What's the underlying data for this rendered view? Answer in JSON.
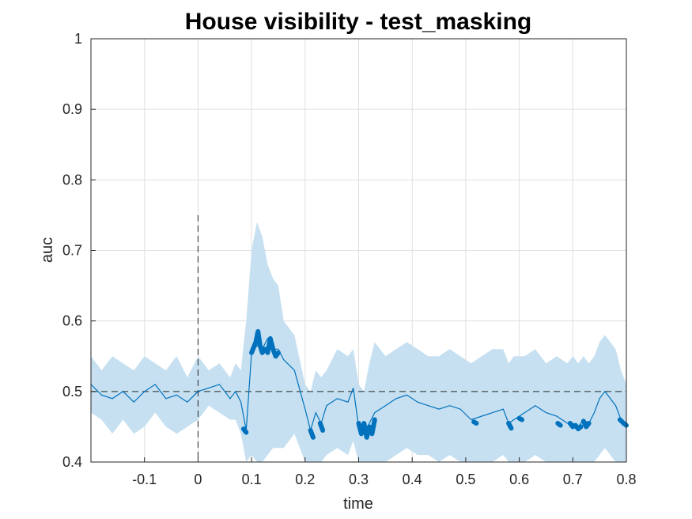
{
  "chart_data": {
    "type": "line",
    "title": "House visibility - test_masking",
    "xlabel": "time",
    "ylabel": "auc",
    "xlim": [
      -0.2,
      0.8
    ],
    "ylim": [
      0.4,
      1.0
    ],
    "xticks": [
      -0.1,
      0,
      0.1,
      0.2,
      0.3,
      0.4,
      0.5,
      0.6,
      0.7,
      0.8
    ],
    "xtick_labels": [
      "-0.1",
      "0",
      "0.1",
      "0.2",
      "0.3",
      "0.4",
      "0.5",
      "0.6",
      "0.7",
      "0.8"
    ],
    "yticks": [
      0.4,
      0.5,
      0.6,
      0.7,
      0.8,
      0.9,
      1.0
    ],
    "ytick_labels": [
      "0.4",
      "0.5",
      "0.6",
      "0.7",
      "0.8",
      "0.9",
      "1"
    ],
    "grid": true,
    "chance_level": 0.5,
    "onset_line": {
      "x": 0,
      "y_range": [
        0.4,
        0.75
      ]
    },
    "colors": {
      "line": "#0072bd",
      "band": "#c6e0f1",
      "reference": "#262626"
    },
    "series": [
      {
        "values_x": [
          -0.2,
          -0.18,
          -0.16,
          -0.14,
          -0.12,
          -0.1,
          -0.08,
          -0.06,
          -0.04,
          -0.02,
          0,
          0.02,
          0.04,
          0.06,
          0.07,
          0.08,
          0.09,
          0.1,
          0.11,
          0.12,
          0.13,
          0.14,
          0.15,
          0.16,
          0.18,
          0.2,
          0.21,
          0.22,
          0.23,
          0.24,
          0.26,
          0.28,
          0.29,
          0.3,
          0.31,
          0.32,
          0.33,
          0.35,
          0.37,
          0.39,
          0.41,
          0.43,
          0.45,
          0.47,
          0.49,
          0.51,
          0.53,
          0.55,
          0.57,
          0.58,
          0.59,
          0.61,
          0.63,
          0.65,
          0.67,
          0.69,
          0.7,
          0.71,
          0.72,
          0.73,
          0.74,
          0.75,
          0.76,
          0.78,
          0.79,
          0.8
        ],
        "values_y": [
          0.51,
          0.495,
          0.49,
          0.5,
          0.485,
          0.5,
          0.51,
          0.49,
          0.495,
          0.485,
          0.5,
          0.505,
          0.51,
          0.49,
          0.5,
          0.485,
          0.445,
          0.555,
          0.565,
          0.56,
          0.575,
          0.56,
          0.56,
          0.545,
          0.53,
          0.475,
          0.445,
          0.47,
          0.455,
          0.48,
          0.49,
          0.485,
          0.505,
          0.45,
          0.44,
          0.455,
          0.47,
          0.48,
          0.49,
          0.495,
          0.485,
          0.48,
          0.475,
          0.48,
          0.475,
          0.46,
          0.465,
          0.47,
          0.475,
          0.455,
          0.46,
          0.47,
          0.48,
          0.47,
          0.465,
          0.455,
          0.455,
          0.45,
          0.46,
          0.455,
          0.47,
          0.49,
          0.5,
          0.48,
          0.46,
          0.455
        ],
        "band_upper": [
          0.55,
          0.53,
          0.55,
          0.54,
          0.53,
          0.55,
          0.54,
          0.53,
          0.55,
          0.52,
          0.55,
          0.53,
          0.54,
          0.52,
          0.54,
          0.53,
          0.6,
          0.7,
          0.74,
          0.72,
          0.68,
          0.66,
          0.65,
          0.6,
          0.58,
          0.51,
          0.5,
          0.53,
          0.52,
          0.53,
          0.56,
          0.55,
          0.56,
          0.51,
          0.5,
          0.54,
          0.57,
          0.55,
          0.56,
          0.57,
          0.56,
          0.55,
          0.55,
          0.56,
          0.55,
          0.54,
          0.55,
          0.56,
          0.56,
          0.54,
          0.55,
          0.55,
          0.56,
          0.54,
          0.55,
          0.54,
          0.55,
          0.54,
          0.55,
          0.54,
          0.55,
          0.57,
          0.58,
          0.56,
          0.53,
          0.51
        ],
        "band_lower": [
          0.47,
          0.46,
          0.44,
          0.46,
          0.44,
          0.45,
          0.47,
          0.45,
          0.44,
          0.45,
          0.46,
          0.48,
          0.47,
          0.46,
          0.46,
          0.44,
          0.4,
          0.41,
          0.4,
          0.4,
          0.41,
          0.42,
          0.42,
          0.42,
          0.44,
          0.4,
          0.4,
          0.4,
          0.4,
          0.41,
          0.42,
          0.41,
          0.43,
          0.4,
          0.4,
          0.4,
          0.4,
          0.4,
          0.41,
          0.42,
          0.41,
          0.41,
          0.4,
          0.41,
          0.4,
          0.4,
          0.4,
          0.4,
          0.41,
          0.4,
          0.4,
          0.4,
          0.41,
          0.4,
          0.4,
          0.4,
          0.4,
          0.4,
          0.4,
          0.4,
          0.4,
          0.41,
          0.42,
          0.4,
          0.4,
          0.4
        ]
      }
    ],
    "significant_segments": [
      {
        "x": [
          0.085,
          0.09
        ],
        "y": [
          0.447,
          0.442
        ]
      },
      {
        "x": [
          0.1,
          0.108,
          0.112,
          0.116,
          0.12,
          0.125
        ],
        "y": [
          0.555,
          0.57,
          0.585,
          0.565,
          0.555,
          0.56
        ]
      },
      {
        "x": [
          0.13,
          0.135,
          0.14,
          0.145,
          0.15
        ],
        "y": [
          0.555,
          0.575,
          0.56,
          0.55,
          0.555
        ]
      },
      {
        "x": [
          0.21,
          0.215
        ],
        "y": [
          0.445,
          0.435
        ]
      },
      {
        "x": [
          0.228,
          0.233
        ],
        "y": [
          0.455,
          0.445
        ]
      },
      {
        "x": [
          0.3,
          0.305,
          0.31,
          0.315,
          0.32,
          0.325,
          0.33
        ],
        "y": [
          0.455,
          0.44,
          0.455,
          0.435,
          0.45,
          0.44,
          0.46
        ]
      },
      {
        "x": [
          0.515,
          0.52
        ],
        "y": [
          0.457,
          0.455
        ]
      },
      {
        "x": [
          0.58,
          0.585
        ],
        "y": [
          0.455,
          0.448
        ]
      },
      {
        "x": [
          0.6,
          0.605
        ],
        "y": [
          0.462,
          0.46
        ]
      },
      {
        "x": [
          0.672,
          0.677
        ],
        "y": [
          0.455,
          0.452
        ]
      },
      {
        "x": [
          0.695,
          0.7,
          0.705,
          0.71,
          0.715
        ],
        "y": [
          0.455,
          0.45,
          0.452,
          0.447,
          0.45
        ]
      },
      {
        "x": [
          0.72,
          0.725,
          0.73
        ],
        "y": [
          0.458,
          0.45,
          0.455
        ]
      },
      {
        "x": [
          0.788,
          0.795,
          0.8
        ],
        "y": [
          0.46,
          0.455,
          0.452
        ]
      }
    ]
  }
}
